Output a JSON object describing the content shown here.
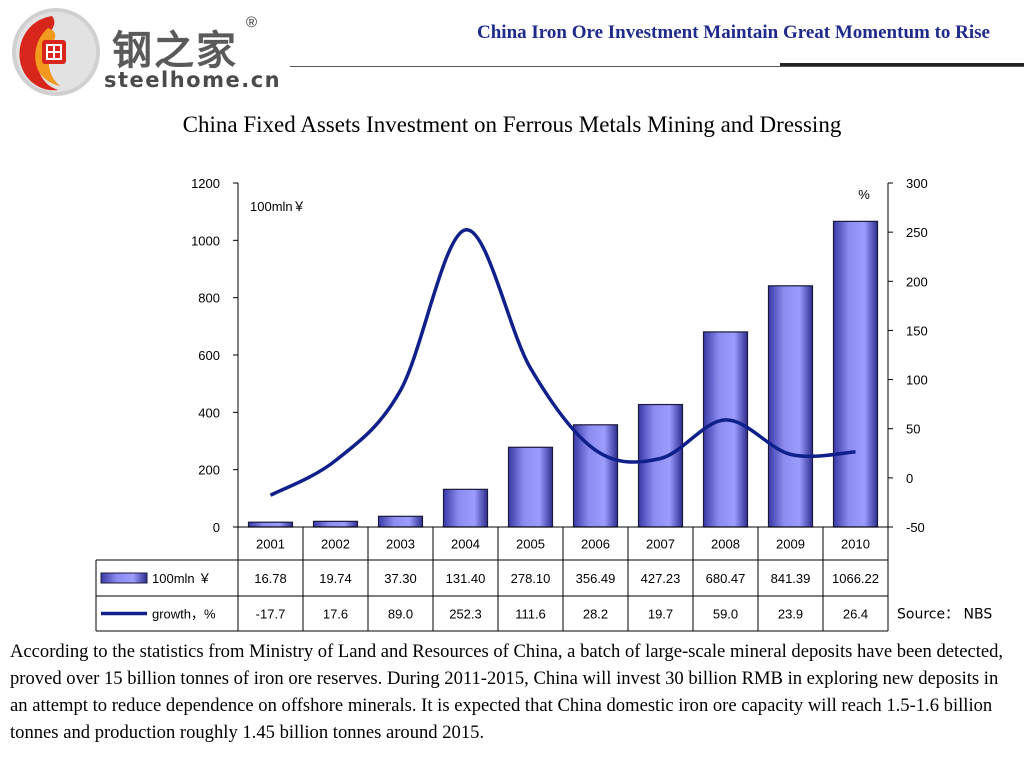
{
  "header": {
    "logo": {
      "cn_text": "钢之家",
      "en_text": "steelhome.cn",
      "registered": "®"
    },
    "title": "China Iron Ore Investment Maintain Great Momentum to Rise"
  },
  "colors": {
    "bar": "#8c8cf0",
    "bar_edge": "#1a1a3a",
    "line": "#10208a",
    "title_blue": "#1f2a8c"
  },
  "chart_data": {
    "type": "bar",
    "title": "China Fixed Assets Investment on Ferrous Metals Mining and Dressing",
    "categories": [
      "2001",
      "2002",
      "2003",
      "2004",
      "2005",
      "2006",
      "2007",
      "2008",
      "2009",
      "2010"
    ],
    "series": [
      {
        "name": "100mln ￥",
        "type": "bar",
        "axis": "left",
        "values": [
          16.78,
          19.74,
          37.3,
          131.4,
          278.1,
          356.49,
          427.23,
          680.47,
          841.39,
          1066.22
        ]
      },
      {
        "name": "growth，%",
        "type": "line",
        "axis": "right",
        "values": [
          -17.7,
          17.6,
          89.0,
          252.3,
          111.6,
          28.2,
          19.7,
          59.0,
          23.9,
          26.4
        ]
      }
    ],
    "left_unit": "100mln￥",
    "right_unit": "%",
    "ylim_left": [
      0,
      1200
    ],
    "ylim_right": [
      -50,
      300
    ],
    "left_ticks": [
      "0",
      "200",
      "400",
      "600",
      "800",
      "1000",
      "1200"
    ],
    "right_ticks": [
      "-50",
      "0",
      "50",
      "100",
      "150",
      "200",
      "250",
      "300"
    ],
    "table_bar_values": [
      "16.78",
      "19.74",
      "37.30",
      "131.40",
      "278.10",
      "356.49",
      "427.23",
      "680.47",
      "841.39",
      "1066.22"
    ],
    "table_growth_values": [
      "-17.7",
      "17.6",
      "89.0",
      "252.3",
      "111.6",
      "28.2",
      "19.7",
      "59.0",
      "23.9",
      "26.4"
    ],
    "grid": false,
    "source": "Source： NBS"
  },
  "body_text": "According to the statistics from Ministry of Land and Resources of China, a batch of large-scale mineral deposits have been detected, proved over 15 billion tonnes of iron ore reserves. During 2011-2015, China will invest 30 billion RMB in exploring new deposits in an attempt to reduce dependence on offshore minerals. It is expected that China domestic iron ore capacity will reach 1.5-1.6 billion tonnes and production roughly 1.45 billion tonnes around 2015."
}
